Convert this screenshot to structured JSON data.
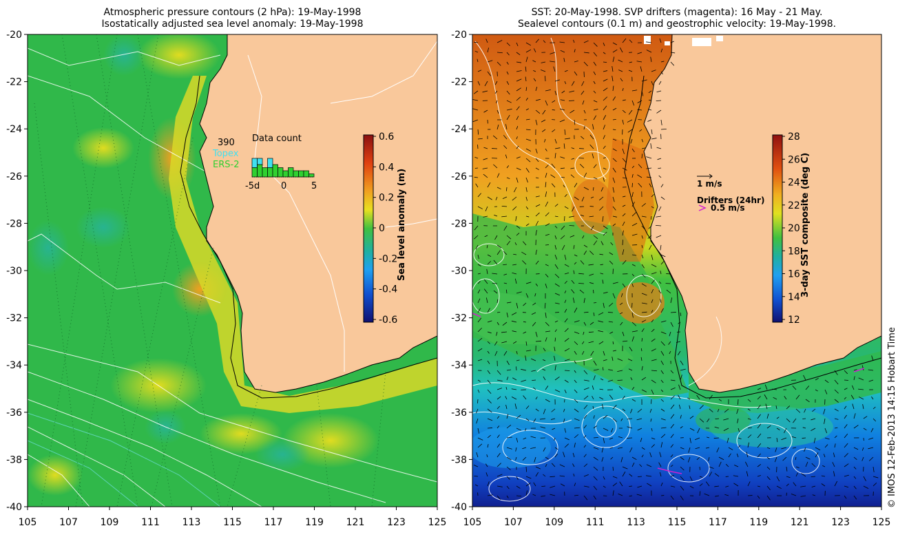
{
  "left_panel": {
    "title_line1": "Atmospheric pressure contours (2 hPa): 19-May-1998",
    "title_line2": "Isostatically adjusted sea level anomaly: 19-May-1998",
    "colorbar": {
      "label": "Sea level anomaly (m)",
      "ticks": [
        "0.6",
        "0.4",
        "0.2",
        "0",
        "-0.2",
        "-0.4",
        "-0.6"
      ]
    },
    "data_count": {
      "title": "Data count",
      "total": "390",
      "series_topex": "Topex",
      "series_ers": "ERS-2",
      "xticks": [
        "-5d",
        "0",
        "5"
      ],
      "topex_color": "#40e0f0",
      "ers_color": "#30d030"
    }
  },
  "right_panel": {
    "title_line1": "SST: 20-May-1998. SVP drifters (magenta): 16 May - 21 May.",
    "title_line2": "Sealevel contours (0.1 m) and geostrophic velocity: 19-May-1998.",
    "colorbar": {
      "label": "3-day SST composite (deg C)",
      "ticks": [
        "28",
        "26",
        "24",
        "22",
        "20",
        "18",
        "16",
        "14",
        "12"
      ]
    },
    "vector_legend": "1 m/s",
    "drifter_legend_title": "Drifters (24hr)",
    "drifter_legend_value": "0.5 m/s"
  },
  "axes": {
    "lat_ticks": [
      "-20",
      "-22",
      "-24",
      "-26",
      "-28",
      "-30",
      "-32",
      "-34",
      "-36",
      "-38",
      "-40"
    ],
    "lon_ticks": [
      "105",
      "107",
      "109",
      "111",
      "113",
      "115",
      "117",
      "119",
      "121",
      "123",
      "125"
    ]
  },
  "colors": {
    "land": "#f9c89b",
    "coast": "#000000"
  },
  "copyright": "© IMOS 12-Feb-2013 14:15 Hobart Time"
}
